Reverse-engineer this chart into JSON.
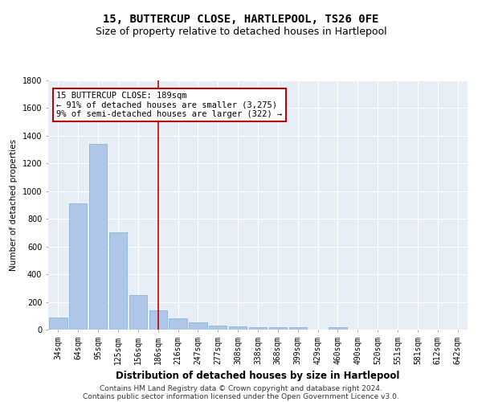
{
  "title": "15, BUTTERCUP CLOSE, HARTLEPOOL, TS26 0FE",
  "subtitle": "Size of property relative to detached houses in Hartlepool",
  "xlabel": "Distribution of detached houses by size in Hartlepool",
  "ylabel": "Number of detached properties",
  "categories": [
    "34sqm",
    "64sqm",
    "95sqm",
    "125sqm",
    "156sqm",
    "186sqm",
    "216sqm",
    "247sqm",
    "277sqm",
    "308sqm",
    "338sqm",
    "368sqm",
    "399sqm",
    "429sqm",
    "460sqm",
    "490sqm",
    "520sqm",
    "551sqm",
    "581sqm",
    "612sqm",
    "642sqm"
  ],
  "values": [
    90,
    910,
    1340,
    700,
    250,
    140,
    80,
    55,
    28,
    22,
    20,
    20,
    15,
    0,
    20,
    0,
    0,
    0,
    0,
    0,
    0
  ],
  "bar_color": "#aec6e8",
  "bar_edge_color": "#7aafd4",
  "vline_color": "#c00000",
  "annotation_title": "15 BUTTERCUP CLOSE: 189sqm",
  "annotation_line1": "← 91% of detached houses are smaller (3,275)",
  "annotation_line2": "9% of semi-detached houses are larger (322) →",
  "annotation_box_color": "#ffffff",
  "annotation_border_color": "#c00000",
  "ylim": [
    0,
    1800
  ],
  "yticks": [
    0,
    200,
    400,
    600,
    800,
    1000,
    1200,
    1400,
    1600,
    1800
  ],
  "background_color": "#e8eef5",
  "footer_line1": "Contains HM Land Registry data © Crown copyright and database right 2024.",
  "footer_line2": "Contains public sector information licensed under the Open Government Licence v3.0.",
  "title_fontsize": 10,
  "subtitle_fontsize": 9,
  "xlabel_fontsize": 8.5,
  "ylabel_fontsize": 7.5,
  "tick_fontsize": 7,
  "footer_fontsize": 6.5,
  "annot_fontsize": 7.5
}
